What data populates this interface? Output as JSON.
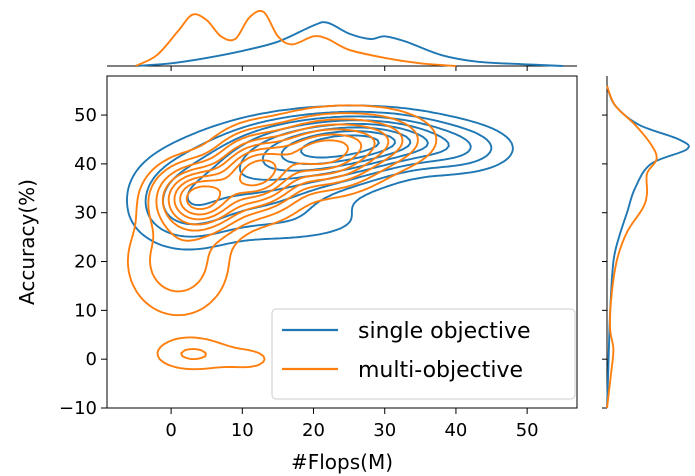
{
  "chart_data": {
    "type": "contour",
    "xlabel": "#Flops(M)",
    "ylabel": "Accuracy(%)",
    "xlim": [
      -9,
      57
    ],
    "ylim": [
      -10,
      58
    ],
    "xticks": [
      0,
      10,
      20,
      30,
      40,
      50
    ],
    "yticks": [
      -10,
      0,
      10,
      20,
      30,
      40,
      50
    ],
    "legend_position": "lower-right",
    "series": [
      {
        "name": "single objective",
        "color": "#1f77b4",
        "peaks": [
          {
            "x": 20.5,
            "y": 42.5,
            "sx": 7.0,
            "sy": 3.8,
            "w": 1.0
          },
          {
            "x": 28.5,
            "y": 45.0,
            "sx": 6.5,
            "sy": 3.0,
            "w": 0.9
          },
          {
            "x": 11.0,
            "y": 37.0,
            "sx": 7.5,
            "sy": 5.0,
            "w": 0.55
          },
          {
            "x": 2.0,
            "y": 31.0,
            "sx": 4.5,
            "sy": 5.0,
            "w": 0.35
          },
          {
            "x": 40.0,
            "y": 43.0,
            "sx": 5.0,
            "sy": 3.0,
            "w": 0.3
          },
          {
            "x": 16.0,
            "y": 28.0,
            "sx": 9.0,
            "sy": 3.0,
            "w": 0.12
          }
        ],
        "x_marginal": [
          [
            -5,
            0
          ],
          [
            0,
            0.05
          ],
          [
            5,
            0.15
          ],
          [
            10,
            0.28
          ],
          [
            15,
            0.45
          ],
          [
            20,
            0.75
          ],
          [
            22,
            0.8
          ],
          [
            25,
            0.6
          ],
          [
            28,
            0.5
          ],
          [
            30,
            0.55
          ],
          [
            33,
            0.45
          ],
          [
            38,
            0.2
          ],
          [
            43,
            0.08
          ],
          [
            50,
            0.03
          ],
          [
            55,
            0
          ]
        ],
        "y_marginal": [
          [
            -10,
            0
          ],
          [
            0,
            0.02
          ],
          [
            10,
            0.04
          ],
          [
            20,
            0.08
          ],
          [
            25,
            0.15
          ],
          [
            30,
            0.25
          ],
          [
            35,
            0.35
          ],
          [
            40,
            0.55
          ],
          [
            43,
            1.0
          ],
          [
            45,
            0.9
          ],
          [
            48,
            0.4
          ],
          [
            52,
            0.1
          ],
          [
            56,
            0
          ]
        ]
      },
      {
        "name": "multi-objective",
        "color": "#ff7f0e",
        "peaks": [
          {
            "x": 4.0,
            "y": 33.0,
            "sx": 3.5,
            "sy": 4.0,
            "w": 1.0
          },
          {
            "x": 12.0,
            "y": 38.0,
            "sx": 3.5,
            "sy": 4.5,
            "w": 0.95
          },
          {
            "x": 21.0,
            "y": 42.0,
            "sx": 4.5,
            "sy": 4.0,
            "w": 0.8
          },
          {
            "x": 28.0,
            "y": 45.0,
            "sx": 5.0,
            "sy": 3.5,
            "w": 0.35
          },
          {
            "x": 1.0,
            "y": 20.0,
            "sx": 4.5,
            "sy": 7.0,
            "w": 0.22
          },
          {
            "x": 3.0,
            "y": 1.0,
            "sx": 3.5,
            "sy": 2.2,
            "w": 0.16
          },
          {
            "x": 11.0,
            "y": 0.0,
            "sx": 3.0,
            "sy": 2.0,
            "w": 0.08
          }
        ],
        "x_marginal": [
          [
            -5,
            0
          ],
          [
            -2,
            0.2
          ],
          [
            1,
            0.65
          ],
          [
            3,
            0.95
          ],
          [
            5,
            0.85
          ],
          [
            7,
            0.55
          ],
          [
            9,
            0.5
          ],
          [
            11,
            0.9
          ],
          [
            13,
            1.0
          ],
          [
            15,
            0.55
          ],
          [
            17,
            0.4
          ],
          [
            20,
            0.55
          ],
          [
            22,
            0.5
          ],
          [
            25,
            0.3
          ],
          [
            30,
            0.15
          ],
          [
            35,
            0.05
          ],
          [
            40,
            0
          ]
        ],
        "y_marginal": [
          [
            -10,
            0
          ],
          [
            -3,
            0.05
          ],
          [
            2,
            0.08
          ],
          [
            6,
            0.04
          ],
          [
            12,
            0.05
          ],
          [
            20,
            0.12
          ],
          [
            26,
            0.25
          ],
          [
            31,
            0.45
          ],
          [
            34,
            0.5
          ],
          [
            38,
            0.5
          ],
          [
            41,
            0.62
          ],
          [
            44,
            0.55
          ],
          [
            48,
            0.35
          ],
          [
            52,
            0.1
          ],
          [
            56,
            0
          ]
        ]
      }
    ]
  }
}
